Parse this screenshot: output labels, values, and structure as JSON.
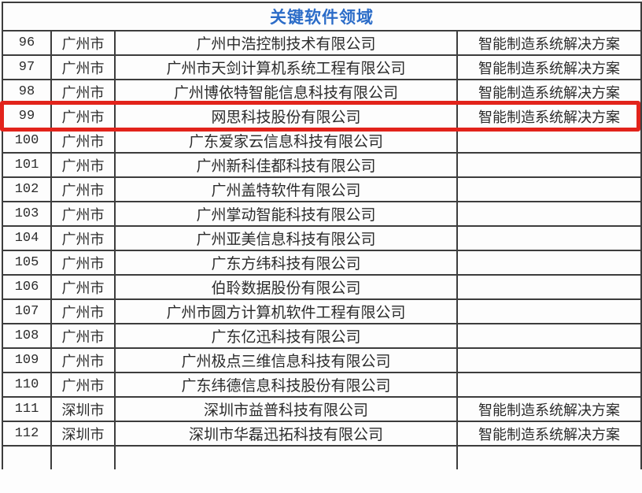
{
  "title": "关键软件领域",
  "colors": {
    "title_blue": "#2b6cc8",
    "highlight_red": "#e2231b",
    "grid_line": "#3d3d3d",
    "text": "#2b2b2b",
    "background": "#fdfdfd"
  },
  "table": {
    "rows": [
      {
        "no": "96",
        "city": "广州市",
        "company": "广州中浩控制技术有限公司",
        "solution": "智能制造系统解决方案",
        "highlighted": false
      },
      {
        "no": "97",
        "city": "广州市",
        "company": "广州市天剑计算机系统工程有限公司",
        "solution": "智能制造系统解决方案",
        "highlighted": false
      },
      {
        "no": "98",
        "city": "广州市",
        "company": "广州博依特智能信息科技有限公司",
        "solution": "智能制造系统解决方案",
        "highlighted": false
      },
      {
        "no": "99",
        "city": "广州市",
        "company": "网思科技股份有限公司",
        "solution": "智能制造系统解决方案",
        "highlighted": true
      },
      {
        "no": "100",
        "city": "广州市",
        "company": "广东爱家云信息科技有限公司",
        "solution": "",
        "highlighted": false
      },
      {
        "no": "101",
        "city": "广州市",
        "company": "广州新科佳都科技有限公司",
        "solution": "",
        "highlighted": false
      },
      {
        "no": "102",
        "city": "广州市",
        "company": "广州盖特软件有限公司",
        "solution": "",
        "highlighted": false
      },
      {
        "no": "103",
        "city": "广州市",
        "company": "广州掌动智能科技有限公司",
        "solution": "",
        "highlighted": false
      },
      {
        "no": "104",
        "city": "广州市",
        "company": "广州亚美信息科技有限公司",
        "solution": "",
        "highlighted": false
      },
      {
        "no": "105",
        "city": "广州市",
        "company": "广东方纬科技有限公司",
        "solution": "",
        "highlighted": false
      },
      {
        "no": "106",
        "city": "广州市",
        "company": "伯聆数据股份有限公司",
        "solution": "",
        "highlighted": false
      },
      {
        "no": "107",
        "city": "广州市",
        "company": "广州市圆方计算机软件工程有限公司",
        "solution": "",
        "highlighted": false
      },
      {
        "no": "108",
        "city": "广州市",
        "company": "广东亿迅科技有限公司",
        "solution": "",
        "highlighted": false
      },
      {
        "no": "109",
        "city": "广州市",
        "company": "广州极点三维信息科技有限公司",
        "solution": "",
        "highlighted": false
      },
      {
        "no": "110",
        "city": "广州市",
        "company": "广东纬德信息科技股份有限公司",
        "solution": "",
        "highlighted": false
      },
      {
        "no": "111",
        "city": "深圳市",
        "company": "深圳市益普科技有限公司",
        "solution": "智能制造系统解决方案",
        "highlighted": false
      },
      {
        "no": "112",
        "city": "深圳市",
        "company": "深圳市华磊迅拓科技有限公司",
        "solution": "智能制造系统解决方案",
        "highlighted": false
      }
    ]
  }
}
